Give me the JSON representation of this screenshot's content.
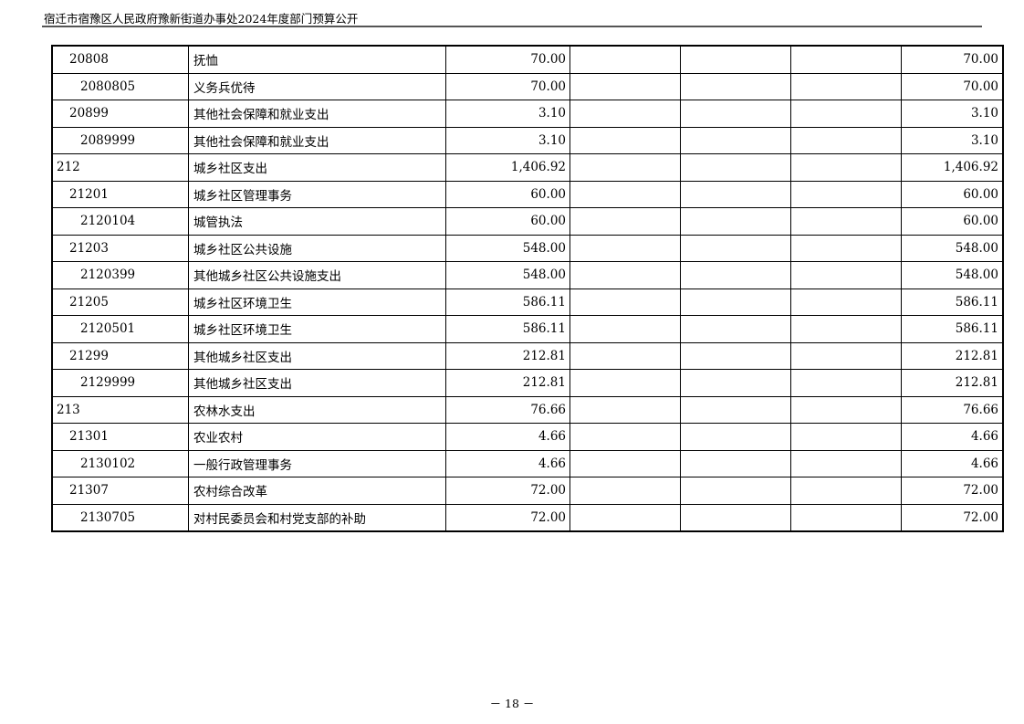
{
  "header": {
    "title": "宿迁市宿豫区人民政府豫新街道办事处2024年度部门预算公开"
  },
  "rows": [
    {
      "code": "20808",
      "level": 1,
      "name": "抚恤",
      "amount": "70.00",
      "total": "70.00"
    },
    {
      "code": "2080805",
      "level": 2,
      "name": "义务兵优待",
      "amount": "70.00",
      "total": "70.00"
    },
    {
      "code": "20899",
      "level": 1,
      "name": "其他社会保障和就业支出",
      "amount": "3.10",
      "total": "3.10"
    },
    {
      "code": "2089999",
      "level": 2,
      "name": "其他社会保障和就业支出",
      "amount": "3.10",
      "total": "3.10"
    },
    {
      "code": "212",
      "level": 0,
      "name": "城乡社区支出",
      "amount": "1,406.92",
      "total": "1,406.92"
    },
    {
      "code": "21201",
      "level": 1,
      "name": "城乡社区管理事务",
      "amount": "60.00",
      "total": "60.00"
    },
    {
      "code": "2120104",
      "level": 2,
      "name": "城管执法",
      "amount": "60.00",
      "total": "60.00"
    },
    {
      "code": "21203",
      "level": 1,
      "name": "城乡社区公共设施",
      "amount": "548.00",
      "total": "548.00"
    },
    {
      "code": "2120399",
      "level": 2,
      "name": "其他城乡社区公共设施支出",
      "amount": "548.00",
      "total": "548.00"
    },
    {
      "code": "21205",
      "level": 1,
      "name": "城乡社区环境卫生",
      "amount": "586.11",
      "total": "586.11"
    },
    {
      "code": "2120501",
      "level": 2,
      "name": "城乡社区环境卫生",
      "amount": "586.11",
      "total": "586.11"
    },
    {
      "code": "21299",
      "level": 1,
      "name": "其他城乡社区支出",
      "amount": "212.81",
      "total": "212.81"
    },
    {
      "code": "2129999",
      "level": 2,
      "name": "其他城乡社区支出",
      "amount": "212.81",
      "total": "212.81"
    },
    {
      "code": "213",
      "level": 0,
      "name": "农林水支出",
      "amount": "76.66",
      "total": "76.66"
    },
    {
      "code": "21301",
      "level": 1,
      "name": "农业农村",
      "amount": "4.66",
      "total": "4.66"
    },
    {
      "code": "2130102",
      "level": 2,
      "name": "一般行政管理事务",
      "amount": "4.66",
      "total": "4.66"
    },
    {
      "code": "21307",
      "level": 1,
      "name": "农村综合改革",
      "amount": "72.00",
      "total": "72.00"
    },
    {
      "code": "2130705",
      "level": 2,
      "name": "对村民委员会和村党支部的补助",
      "amount": "72.00",
      "total": "72.00"
    }
  ],
  "footer": {
    "page": "－ 18 －"
  }
}
